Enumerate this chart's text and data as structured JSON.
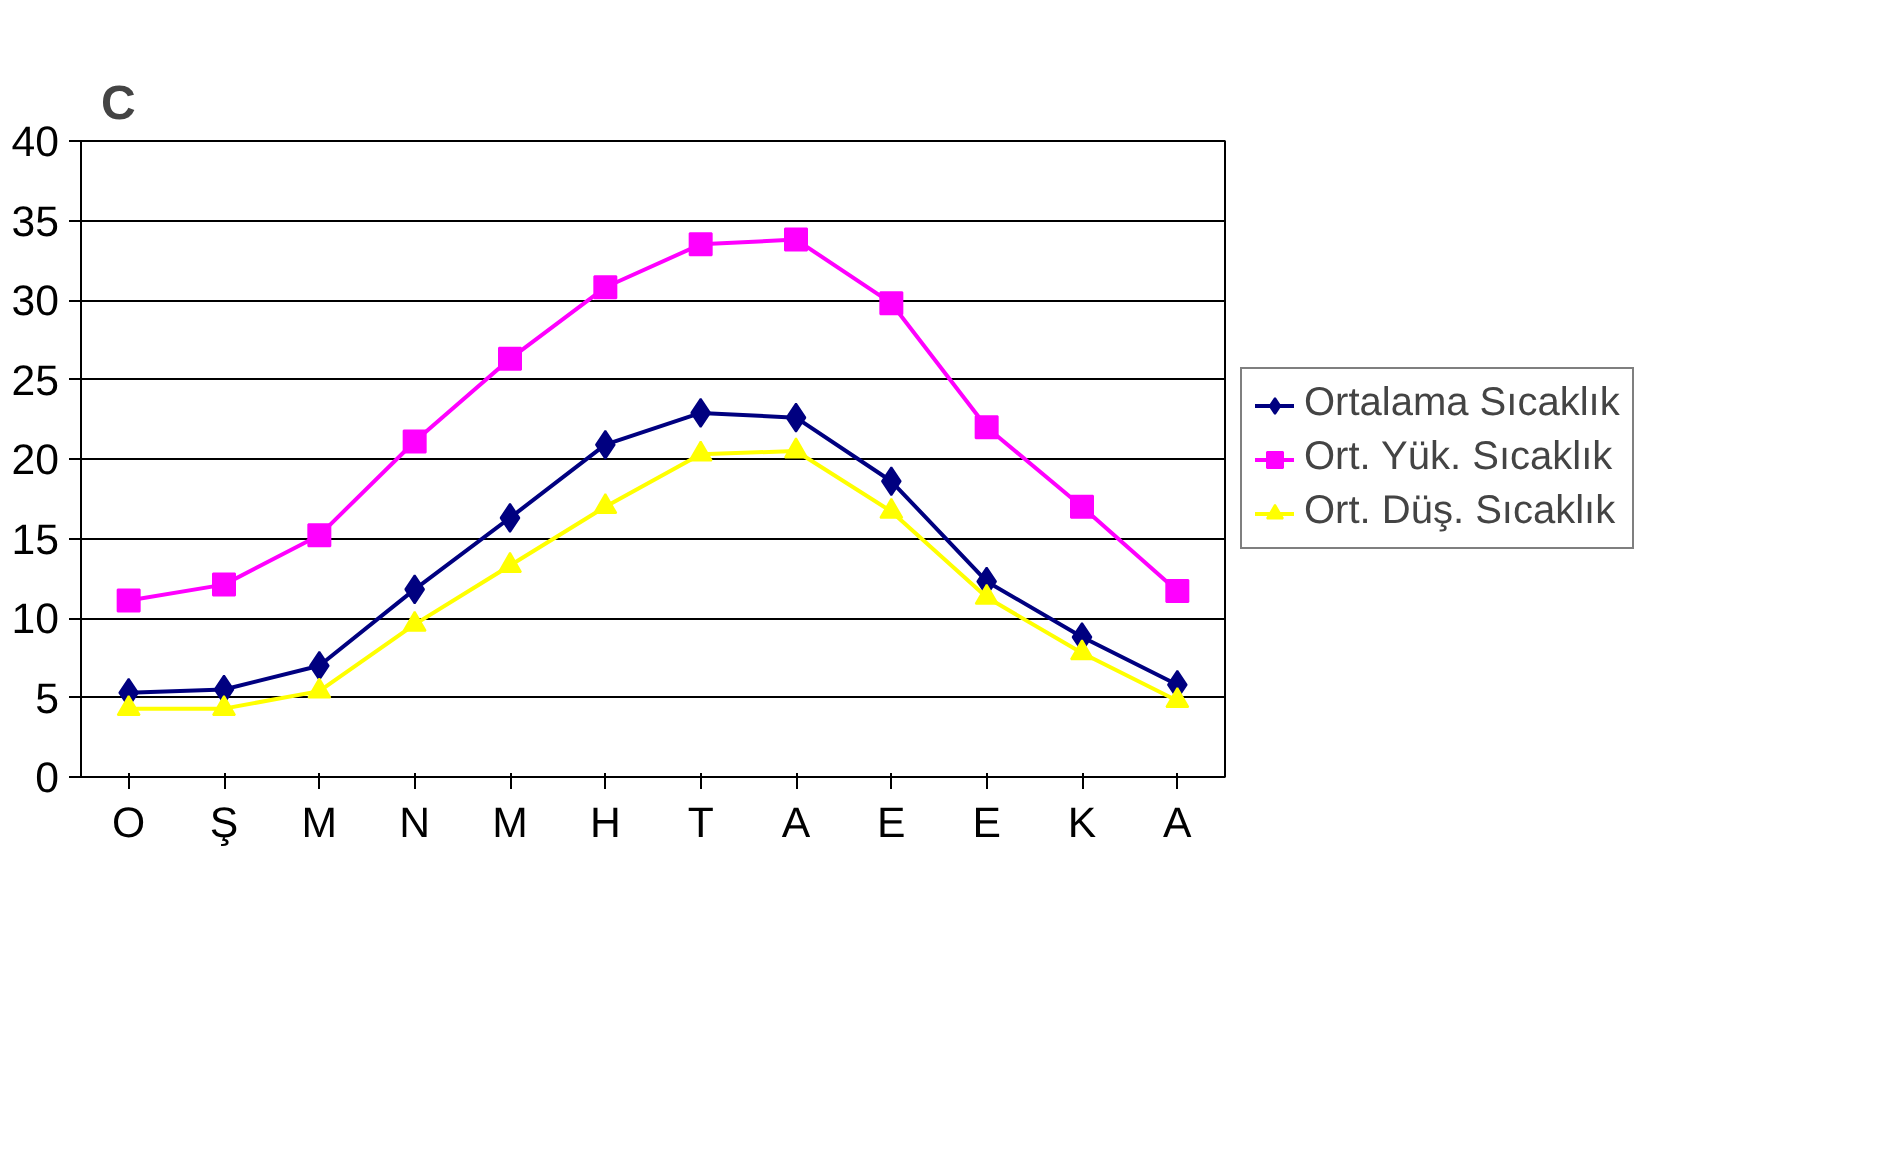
{
  "chart_data": {
    "type": "line",
    "title": "C",
    "categories": [
      "O",
      "Ş",
      "M",
      "N",
      "M",
      "H",
      "T",
      "A",
      "E",
      "E",
      "K",
      "A"
    ],
    "series": [
      {
        "name": "Ortalama Sıcaklık",
        "color": "#000080",
        "marker": "diamond",
        "values": [
          5.3,
          5.5,
          7.0,
          11.8,
          16.3,
          20.9,
          22.9,
          22.6,
          18.6,
          12.3,
          8.8,
          5.8
        ]
      },
      {
        "name": "Ort. Yük. Sıcaklık",
        "color": "#ff00ff",
        "marker": "square",
        "values": [
          11.1,
          12.1,
          15.2,
          21.1,
          26.3,
          30.8,
          33.5,
          33.8,
          29.8,
          22.0,
          17.0,
          11.7
        ]
      },
      {
        "name": "Ort. Düş. Sıcaklık",
        "color": "#ffff00",
        "marker": "triangle",
        "values": [
          4.3,
          4.3,
          5.4,
          9.6,
          13.3,
          17.0,
          20.3,
          20.5,
          16.7,
          11.3,
          7.8,
          4.8
        ]
      }
    ],
    "ylim": [
      0,
      40
    ],
    "yticks": [
      0,
      5,
      10,
      15,
      20,
      25,
      30,
      35,
      40
    ],
    "grid": "y",
    "legend": "right",
    "line_style": "solid"
  }
}
